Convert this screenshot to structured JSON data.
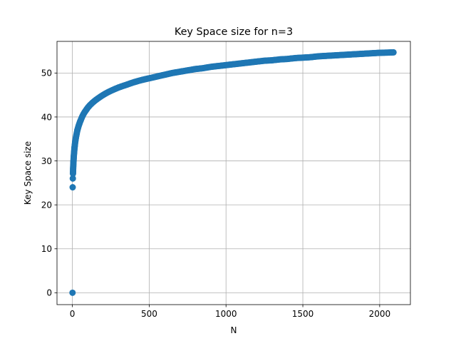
{
  "chart_data": {
    "type": "scatter",
    "title": "Key Space size for n=3",
    "xlabel": "N",
    "ylabel": "Key Space size",
    "xlim": [
      -100,
      2200
    ],
    "ylim": [
      -2.7,
      57.2
    ],
    "xticks": [
      0,
      500,
      1000,
      1500,
      2000
    ],
    "yticks": [
      0,
      10,
      20,
      30,
      40,
      50
    ],
    "grid": true,
    "marker_color": "#1f77b4",
    "series": [
      {
        "x": [
          1,
          2,
          3,
          4,
          5,
          6,
          7,
          8,
          9,
          10,
          11,
          12,
          13,
          14,
          15,
          16,
          18,
          20,
          22,
          25,
          28,
          32,
          36,
          40,
          45,
          50,
          56,
          63,
          70,
          80,
          90,
          100,
          115,
          130,
          150,
          170,
          200,
          230,
          260,
          300,
          350,
          400,
          450,
          500,
          550,
          600,
          650,
          700,
          750,
          800,
          850,
          900,
          950,
          1000,
          1050,
          1100,
          1150,
          1200,
          1250,
          1300,
          1350,
          1400,
          1450,
          1500,
          1550,
          1600,
          1650,
          1700,
          1750,
          1800,
          1850,
          1900,
          1950,
          2000,
          2050,
          2090
        ],
        "y": [
          0,
          24.0,
          26.0,
          27.1,
          28.2,
          29.0,
          29.7,
          30.3,
          30.9,
          31.4,
          31.8,
          32.2,
          32.6,
          33.0,
          33.3,
          33.6,
          34.2,
          34.7,
          35.1,
          35.7,
          36.2,
          36.9,
          37.4,
          37.9,
          38.4,
          38.9,
          39.4,
          40.0,
          40.5,
          41.1,
          41.6,
          42.1,
          42.7,
          43.2,
          43.8,
          44.3,
          45.0,
          45.6,
          46.1,
          46.7,
          47.3,
          47.9,
          48.4,
          48.8,
          49.2,
          49.6,
          50.0,
          50.3,
          50.6,
          50.9,
          51.1,
          51.4,
          51.6,
          51.8,
          52.0,
          52.2,
          52.4,
          52.6,
          52.8,
          52.9,
          53.1,
          53.2,
          53.4,
          53.5,
          53.6,
          53.8,
          53.9,
          54.0,
          54.1,
          54.2,
          54.3,
          54.4,
          54.5,
          54.6,
          54.65,
          54.7
        ]
      }
    ]
  }
}
